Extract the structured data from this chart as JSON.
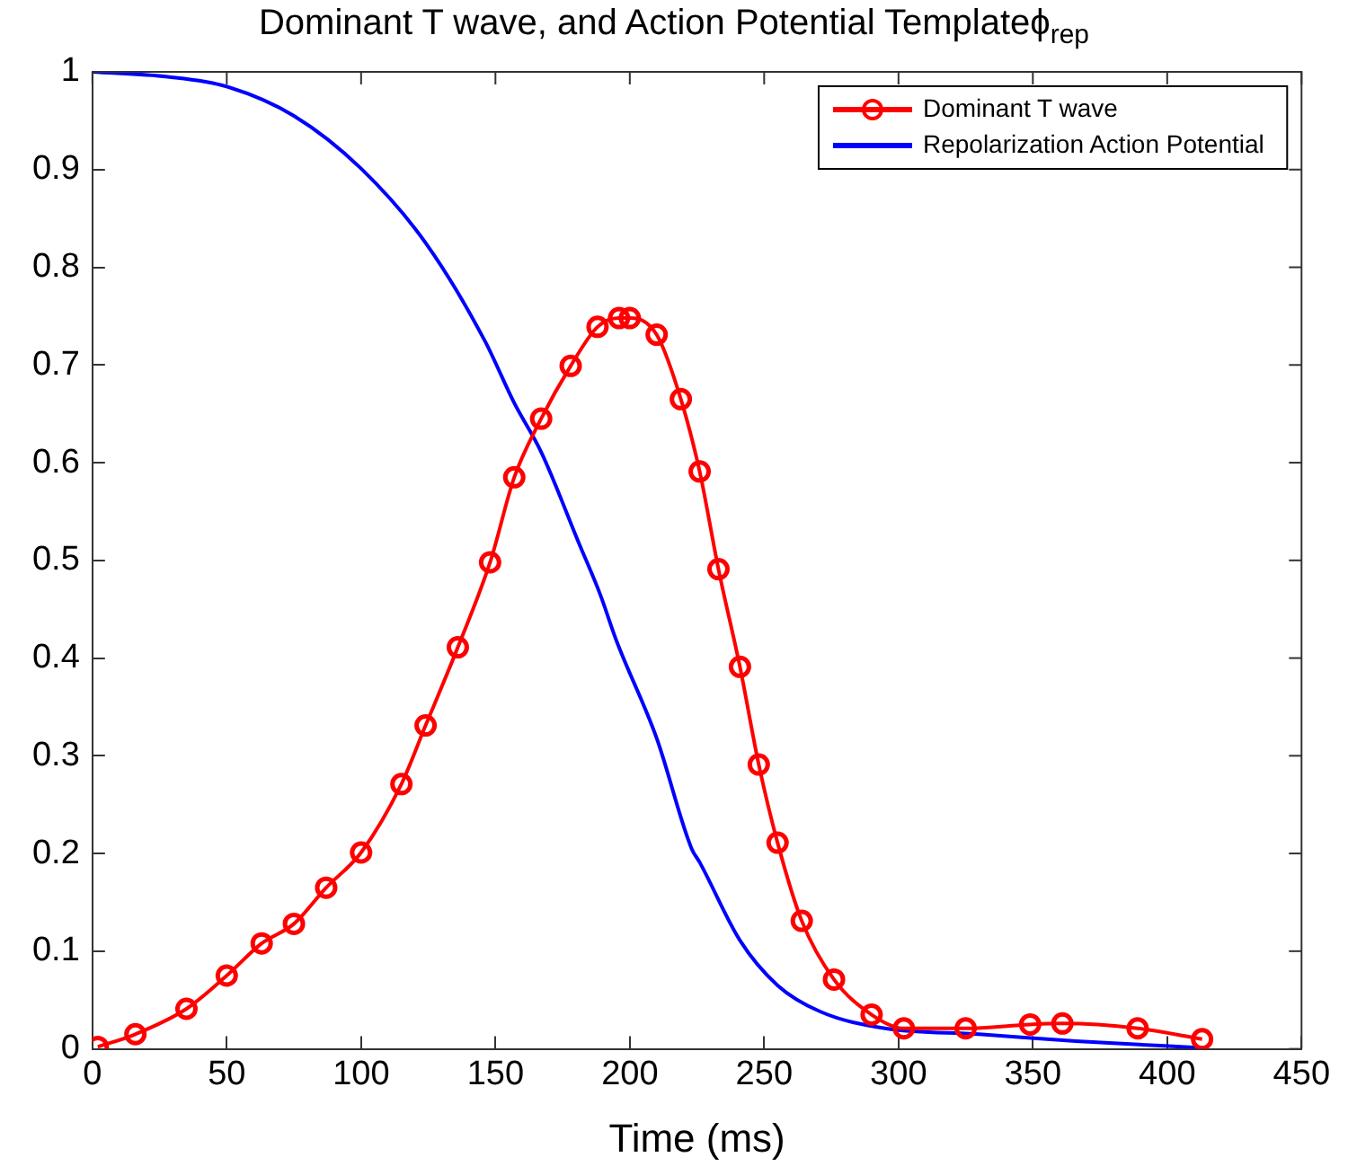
{
  "chart_data": {
    "type": "line",
    "title": "Dominant T wave, and Action Potential Templateϕ$_{rep}$",
    "xlabel": "Time (ms)",
    "xlim": [
      0,
      450
    ],
    "xticks": [
      0,
      50,
      100,
      150,
      200,
      250,
      300,
      350,
      400,
      450
    ],
    "ylim": [
      0,
      1
    ],
    "yticks": [
      0,
      0.1,
      0.2,
      0.3,
      0.4,
      0.5,
      0.6,
      0.7,
      0.8,
      0.9,
      1
    ],
    "grid": false,
    "legend": "top right",
    "series": [
      {
        "name": "Dominant T wave",
        "color": "#ff0000",
        "marker": "circle",
        "x": [
          2,
          16,
          35,
          50,
          63,
          75,
          87,
          100,
          115,
          124,
          136,
          148,
          157,
          167,
          178,
          188,
          196,
          200,
          210,
          219,
          226,
          233,
          241,
          248,
          255,
          264,
          276,
          290,
          302,
          325,
          349,
          361,
          389,
          413
        ],
        "values": [
          0.002,
          0.015,
          0.041,
          0.075,
          0.108,
          0.128,
          0.165,
          0.201,
          0.271,
          0.331,
          0.411,
          0.498,
          0.585,
          0.645,
          0.699,
          0.739,
          0.748,
          0.748,
          0.731,
          0.665,
          0.591,
          0.491,
          0.391,
          0.291,
          0.211,
          0.131,
          0.071,
          0.035,
          0.021,
          0.021,
          0.025,
          0.026,
          0.021,
          0.01
        ]
      },
      {
        "name": "Repolarization Action Potential",
        "color": "#0000ff",
        "marker": "none",
        "x": [
          0,
          28,
          50,
          75,
          100,
          124,
          146,
          157,
          167,
          181,
          189,
          195,
          210,
          223,
          226,
          241,
          255,
          271,
          295,
          330,
          366,
          413
        ],
        "values": [
          1,
          0.995,
          0.985,
          0.955,
          0.901,
          0.825,
          0.725,
          0.661,
          0.611,
          0.518,
          0.465,
          0.418,
          0.318,
          0.205,
          0.191,
          0.111,
          0.065,
          0.038,
          0.021,
          0.015,
          0.008,
          0.001
        ]
      }
    ]
  }
}
